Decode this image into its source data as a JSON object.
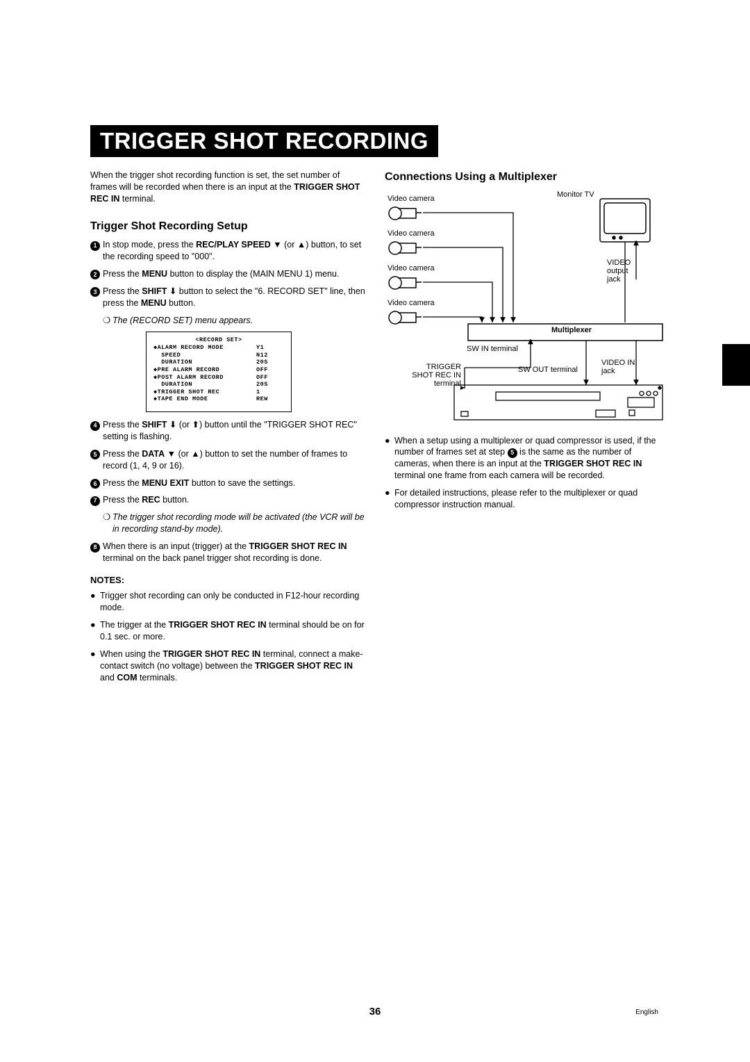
{
  "title": "TRIGGER SHOT RECORDING",
  "intro": "When the trigger shot recording function is set, the set number of frames will be recorded when there is an input at the <b>TRIGGER SHOT REC IN</b> terminal.",
  "setup_heading": "Trigger Shot Recording Setup",
  "steps": [
    {
      "n": "1",
      "html": "In stop mode, press the <b>REC/PLAY SPEED</b> ▼ (or ▲) button, to set the recording speed to \"000\"."
    },
    {
      "n": "2",
      "html": "Press the <b>MENU</b> button to display the (MAIN MENU 1) menu."
    },
    {
      "n": "3",
      "html": "Press the <b>SHIFT</b> ⬇ button to select the \"6. RECORD SET\" line, then press the <b>MENU</b> button."
    }
  ],
  "sub1": "The (RECORD SET) menu appears.",
  "menu": {
    "title": "<RECORD SET>",
    "rows": [
      {
        "l": "◆ALARM RECORD MODE",
        "v": "Y1"
      },
      {
        "l": "  SPEED",
        "v": "N12"
      },
      {
        "l": "  DURATION",
        "v": "20S"
      },
      {
        "l": "◆PRE ALARM RECORD",
        "v": "OFF"
      },
      {
        "l": "◆POST ALARM RECORD",
        "v": "OFF"
      },
      {
        "l": "  DURATION",
        "v": "20S"
      },
      {
        "l": "◆TRIGGER SHOT REC",
        "v": "1"
      },
      {
        "l": "◆TAPE END MODE",
        "v": "REW"
      }
    ]
  },
  "steps2": [
    {
      "n": "4",
      "html": "Press the <b>SHIFT</b> ⬇ (or ⬆) button until the \"TRIGGER SHOT REC\" setting is flashing."
    },
    {
      "n": "5",
      "html": "Press the <b>DATA</b> ▼ (or ▲) button to set the number of frames to record (1, 4, 9 or 16)."
    },
    {
      "n": "6",
      "html": "Press the <b>MENU EXIT</b> button to save the settings."
    },
    {
      "n": "7",
      "html": "Press the <b>REC</b> button."
    }
  ],
  "sub2": "The trigger shot recording mode will be activated (the VCR will be in recording stand-by mode).",
  "steps3": [
    {
      "n": "8",
      "html": "When there is an input (trigger) at the <b>TRIGGER SHOT REC IN</b> terminal on the back panel trigger shot recording is done."
    }
  ],
  "notes_h": "NOTES:",
  "notes": [
    "Trigger shot recording can only be conducted in F12-hour recording mode.",
    "The trigger at the <b>TRIGGER SHOT REC IN</b> terminal should be on for 0.1 sec. or more.",
    "When using the <b>TRIGGER SHOT REC IN</b> terminal, connect a make-contact switch (no voltage) between the <b>TRIGGER SHOT REC IN</b> and <b>COM</b> terminals."
  ],
  "conn_heading": "Connections Using a Multiplexer",
  "diagram": {
    "videocam": "Video camera",
    "monitor": "Monitor TV",
    "multiplexer": "Multiplexer",
    "sw_in": "SW IN terminal",
    "sw_out": "SW OUT terminal",
    "video_out": "VIDEO output jack",
    "video_in": "VIDEO IN jack",
    "trigger": "TRIGGER SHOT REC IN terminal"
  },
  "conn_bullets": [
    "When a setup using a multiplexer or quad compressor is used, if the number of frames set at step <circ>5</circ> is the same as the number of cameras, when there is an input at the <b>TRIGGER SHOT REC IN</b> terminal one frame from each camera will be recorded.",
    "For detailed instructions, please refer to the multiplexer or quad compressor instruction manual."
  ],
  "page": "36",
  "lang": "English"
}
